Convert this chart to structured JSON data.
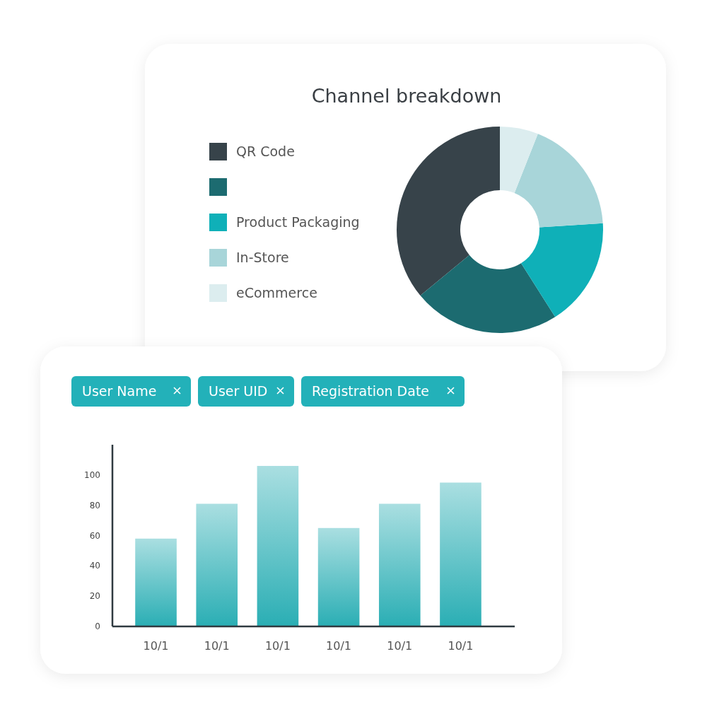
{
  "chart_data": [
    {
      "type": "donut",
      "title": "Channel breakdown",
      "categories": [
        "QR Code",
        null,
        "Product Packaging",
        "In-Store",
        "eCommerce"
      ],
      "values": [
        36,
        23,
        17,
        18,
        6
      ],
      "colors": [
        "#37434a",
        "#1c6b70",
        "#0fb0b8",
        "#a8d5d9",
        "#dcedef"
      ],
      "legend": "left"
    },
    {
      "type": "bar",
      "annotations": [
        "User Name",
        "User UID",
        "Registration Date"
      ],
      "categories": [
        "10/1",
        "10/1",
        "10/1",
        "10/1",
        "10/1",
        "10/1"
      ],
      "values": [
        58,
        81,
        106,
        65,
        81,
        95
      ],
      "color": "#2aaeb4",
      "ylim": [
        0,
        120
      ],
      "yticks": [
        0,
        20,
        40,
        60,
        80,
        100
      ],
      "grid": false
    }
  ]
}
